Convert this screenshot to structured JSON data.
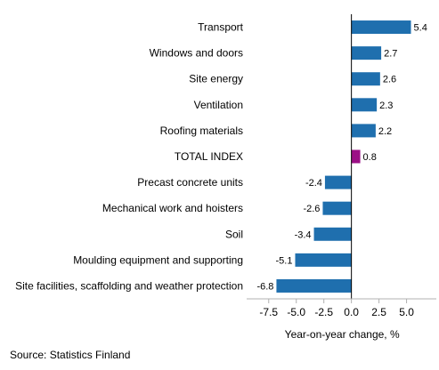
{
  "chart_data": {
    "type": "bar",
    "orientation": "horizontal",
    "categories": [
      "Transport",
      "Windows and doors",
      "Site energy",
      "Ventilation",
      "Roofing materials",
      "TOTAL INDEX",
      "Precast concrete units",
      "Mechanical work and hoisters",
      "Soil",
      "Moulding equipment and supporting",
      "Site facilities, scaffolding and weather protection"
    ],
    "values": [
      5.4,
      2.7,
      2.6,
      2.3,
      2.2,
      0.8,
      -2.4,
      -2.6,
      -3.4,
      -5.1,
      -6.8
    ],
    "value_labels": [
      "5.4",
      "2.7",
      "2.6",
      "2.3",
      "2.2",
      "0.8",
      "-2.4",
      "-2.6",
      "-3.4",
      "-5.1",
      "-6.8"
    ],
    "highlight_category": "TOTAL INDEX",
    "colors": {
      "bar": "#1f6fae",
      "highlight": "#9b1086",
      "axis": "#000000",
      "tick_mark": "#b0b0b0"
    },
    "xlabel": "Year-on-year change, %",
    "ylabel": "",
    "xlim": [
      -9.5,
      7.7
    ],
    "xticks": [
      -7.5,
      -5.0,
      -2.5,
      0.0,
      2.5,
      5.0
    ],
    "xtick_labels": [
      "-7.5",
      "-5.0",
      "-2.5",
      "0.0",
      "2.5",
      "5.0"
    ],
    "grid": false,
    "legend": "none"
  },
  "footer": {
    "source": "Source: Statistics Finland"
  }
}
